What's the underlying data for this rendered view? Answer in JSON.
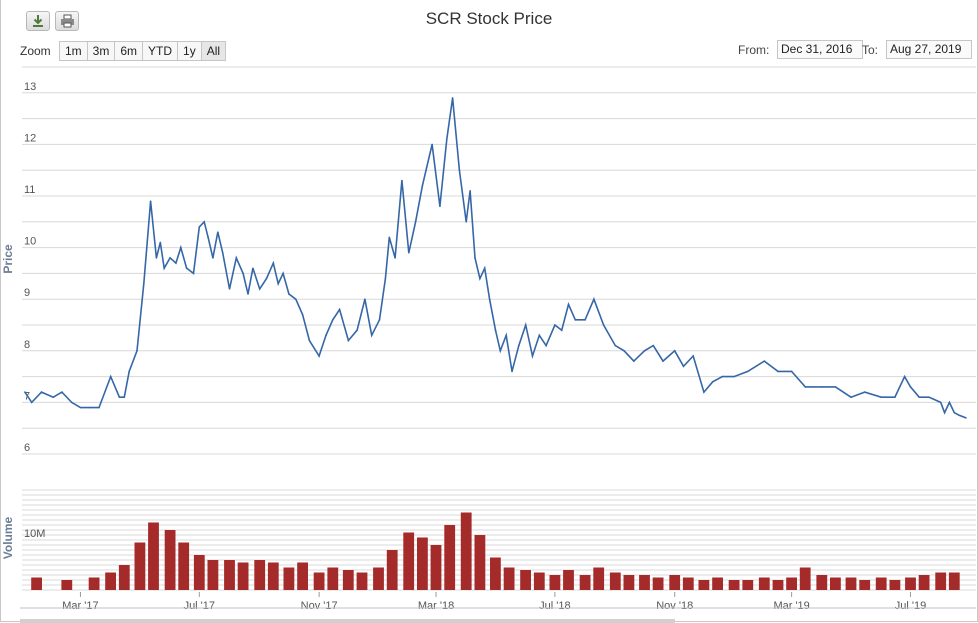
{
  "toolbar": {
    "download_icon": "download-icon",
    "print_icon": "print-icon",
    "zoom_label": "Zoom",
    "zoom_buttons": [
      "1m",
      "3m",
      "6m",
      "YTD",
      "1y",
      "All"
    ],
    "from_label": "From:",
    "from_value": "Dec 31, 2016",
    "to_label": "To:",
    "to_value": "Aug 27, 2019"
  },
  "colors": {
    "line": "#3567a8",
    "volume": "#a52a2a",
    "grid": "#d8d8d8"
  },
  "chart_data": [
    {
      "type": "line",
      "title": "SCR Stock Price",
      "ylabel": "Price",
      "ylim": [
        6,
        13.5
      ],
      "yticks": [
        6,
        7,
        8,
        9,
        10,
        11,
        12,
        13
      ],
      "xlim": [
        "2016-12-31",
        "2019-08-27"
      ],
      "xticks": [
        {
          "date": "2017-03-01",
          "label": "Mar '17"
        },
        {
          "date": "2017-07-01",
          "label": "Jul '17"
        },
        {
          "date": "2017-11-01",
          "label": "Nov '17"
        },
        {
          "date": "2018-03-01",
          "label": "Mar '18"
        },
        {
          "date": "2018-07-01",
          "label": "Jul '18"
        },
        {
          "date": "2018-11-01",
          "label": "Nov '18"
        },
        {
          "date": "2019-03-01",
          "label": "Mar '19"
        },
        {
          "date": "2019-07-01",
          "label": "Jul '19"
        }
      ],
      "series": [
        {
          "x": [
            "2017-01-03",
            "2017-01-10",
            "2017-01-20",
            "2017-02-01",
            "2017-02-10",
            "2017-02-20",
            "2017-03-01",
            "2017-03-10",
            "2017-03-20",
            "2017-04-01",
            "2017-04-10",
            "2017-04-15",
            "2017-04-20",
            "2017-04-28",
            "2017-05-05",
            "2017-05-12",
            "2017-05-18",
            "2017-05-22",
            "2017-05-26",
            "2017-06-01",
            "2017-06-07",
            "2017-06-12",
            "2017-06-18",
            "2017-06-25",
            "2017-07-01",
            "2017-07-06",
            "2017-07-10",
            "2017-07-15",
            "2017-07-20",
            "2017-07-25",
            "2017-08-01",
            "2017-08-08",
            "2017-08-15",
            "2017-08-20",
            "2017-08-25",
            "2017-09-01",
            "2017-09-08",
            "2017-09-15",
            "2017-09-20",
            "2017-09-25",
            "2017-10-01",
            "2017-10-08",
            "2017-10-15",
            "2017-10-22",
            "2017-11-01",
            "2017-11-08",
            "2017-11-15",
            "2017-11-22",
            "2017-12-01",
            "2017-12-10",
            "2017-12-18",
            "2017-12-25",
            "2018-01-02",
            "2018-01-08",
            "2018-01-12",
            "2018-01-18",
            "2018-01-25",
            "2018-02-01",
            "2018-02-08",
            "2018-02-15",
            "2018-02-25",
            "2018-03-05",
            "2018-03-12",
            "2018-03-18",
            "2018-03-25",
            "2018-04-01",
            "2018-04-05",
            "2018-04-10",
            "2018-04-15",
            "2018-04-20",
            "2018-04-25",
            "2018-05-01",
            "2018-05-06",
            "2018-05-12",
            "2018-05-18",
            "2018-05-25",
            "2018-06-01",
            "2018-06-08",
            "2018-06-15",
            "2018-06-22",
            "2018-07-01",
            "2018-07-08",
            "2018-07-15",
            "2018-07-22",
            "2018-08-01",
            "2018-08-10",
            "2018-08-20",
            "2018-09-01",
            "2018-09-10",
            "2018-09-20",
            "2018-10-01",
            "2018-10-10",
            "2018-10-20",
            "2018-11-01",
            "2018-11-10",
            "2018-11-20",
            "2018-12-01",
            "2018-12-10",
            "2018-12-20",
            "2019-01-01",
            "2019-01-15",
            "2019-02-01",
            "2019-02-15",
            "2019-03-01",
            "2019-03-15",
            "2019-04-01",
            "2019-04-15",
            "2019-05-01",
            "2019-05-15",
            "2019-06-01",
            "2019-06-15",
            "2019-06-25",
            "2019-07-01",
            "2019-07-10",
            "2019-07-20",
            "2019-08-01",
            "2019-08-05",
            "2019-08-10",
            "2019-08-15",
            "2019-08-20",
            "2019-08-27"
          ],
          "y": [
            7.2,
            7.0,
            7.2,
            7.1,
            7.2,
            7.0,
            6.9,
            6.9,
            6.9,
            7.5,
            7.1,
            7.1,
            7.6,
            8.0,
            9.3,
            10.9,
            9.8,
            10.1,
            9.6,
            9.8,
            9.7,
            10.0,
            9.6,
            9.5,
            10.4,
            10.5,
            10.2,
            9.8,
            10.3,
            9.9,
            9.2,
            9.8,
            9.5,
            9.1,
            9.6,
            9.2,
            9.4,
            9.7,
            9.3,
            9.5,
            9.1,
            9.0,
            8.7,
            8.2,
            7.9,
            8.3,
            8.6,
            8.8,
            8.2,
            8.4,
            9.0,
            8.3,
            8.6,
            9.4,
            10.2,
            9.8,
            11.3,
            9.9,
            10.5,
            11.2,
            12.0,
            10.8,
            12.1,
            12.9,
            11.5,
            10.5,
            11.1,
            9.8,
            9.4,
            9.6,
            9.0,
            8.4,
            8.0,
            8.3,
            7.6,
            8.1,
            8.5,
            7.9,
            8.3,
            8.1,
            8.5,
            8.4,
            8.9,
            8.6,
            8.6,
            9.0,
            8.5,
            8.1,
            8.0,
            7.8,
            8.0,
            8.1,
            7.8,
            8.0,
            7.7,
            7.9,
            7.2,
            7.4,
            7.5,
            7.5,
            7.6,
            7.8,
            7.6,
            7.6,
            7.3,
            7.3,
            7.3,
            7.1,
            7.2,
            7.1,
            7.1,
            7.5,
            7.3,
            7.1,
            7.1,
            7.0,
            6.8,
            7.0,
            6.8,
            6.75,
            6.7
          ]
        }
      ]
    },
    {
      "type": "bar",
      "ylabel": "Volume",
      "ylim": [
        0,
        20000000
      ],
      "yticks": [
        {
          "value": 10000000,
          "label": "10M"
        }
      ],
      "series": [
        {
          "x": [
            "2017-01-15",
            "2017-02-15",
            "2017-03-15",
            "2017-04-01",
            "2017-04-15",
            "2017-05-01",
            "2017-05-15",
            "2017-06-01",
            "2017-06-15",
            "2017-07-01",
            "2017-07-15",
            "2017-08-01",
            "2017-08-15",
            "2017-09-01",
            "2017-09-15",
            "2017-10-01",
            "2017-10-15",
            "2017-11-01",
            "2017-11-15",
            "2017-12-01",
            "2017-12-15",
            "2018-01-01",
            "2018-01-15",
            "2018-02-01",
            "2018-02-15",
            "2018-03-01",
            "2018-03-15",
            "2018-04-01",
            "2018-04-15",
            "2018-05-01",
            "2018-05-15",
            "2018-06-01",
            "2018-06-15",
            "2018-07-01",
            "2018-07-15",
            "2018-08-01",
            "2018-08-15",
            "2018-09-01",
            "2018-09-15",
            "2018-10-01",
            "2018-10-15",
            "2018-11-01",
            "2018-11-15",
            "2018-12-01",
            "2018-12-15",
            "2019-01-01",
            "2019-01-15",
            "2019-02-01",
            "2019-02-15",
            "2019-03-01",
            "2019-03-15",
            "2019-04-01",
            "2019-04-15",
            "2019-05-01",
            "2019-05-15",
            "2019-06-01",
            "2019-06-15",
            "2019-07-01",
            "2019-07-15",
            "2019-08-01",
            "2019-08-15"
          ],
          "y": [
            2500000,
            2000000,
            2500000,
            3500000,
            5000000,
            9500000,
            13500000,
            12000000,
            9500000,
            7000000,
            6000000,
            6000000,
            5500000,
            6000000,
            5500000,
            4500000,
            5500000,
            3500000,
            4500000,
            4000000,
            3500000,
            4500000,
            8000000,
            11500000,
            10500000,
            9000000,
            13000000,
            15500000,
            11000000,
            6500000,
            4500000,
            4000000,
            3500000,
            3000000,
            4000000,
            3000000,
            4500000,
            3500000,
            3000000,
            3000000,
            2500000,
            3000000,
            2500000,
            2000000,
            2500000,
            2000000,
            2000000,
            2500000,
            2000000,
            2500000,
            4500000,
            3000000,
            2500000,
            2500000,
            2000000,
            2500000,
            2000000,
            2500000,
            3000000,
            3500000,
            3500000
          ]
        }
      ]
    }
  ]
}
